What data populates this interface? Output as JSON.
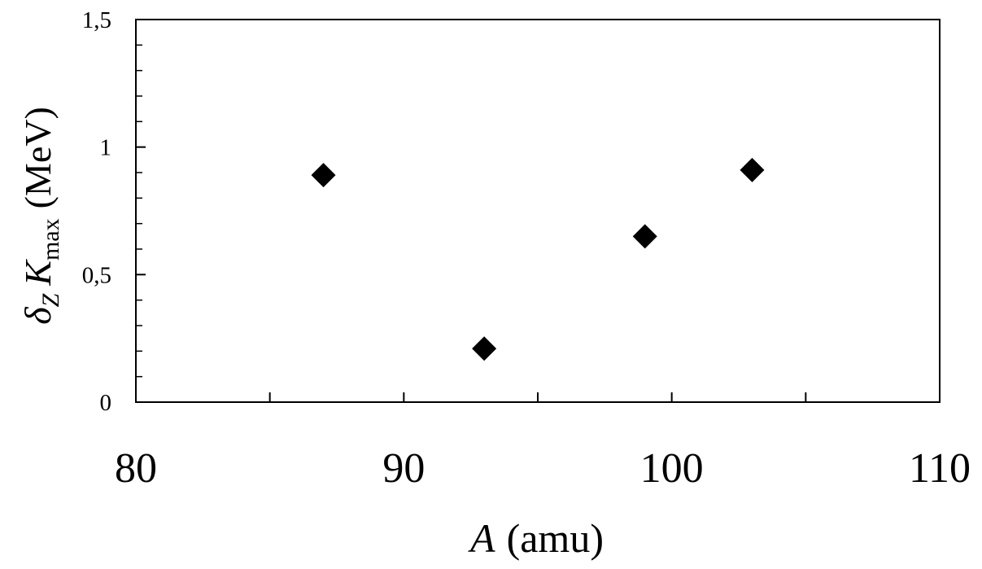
{
  "chart_data": {
    "type": "scatter",
    "x_label": [
      "A",
      "(amu)"
    ],
    "y_label": [
      "δ",
      "Z",
      "K",
      "max",
      "(MeV)"
    ],
    "series": [
      {
        "color": "#000000",
        "marker": "diamond",
        "x": [
          87,
          93,
          99,
          103
        ],
        "values": [
          0.89,
          0.21,
          0.65,
          0.91
        ]
      }
    ],
    "xlim": [
      80,
      110
    ],
    "xticks": [
      80,
      90,
      100,
      110
    ],
    "ylim": [
      0,
      1.5
    ],
    "yticks": [
      0,
      {
        "value": 0.5,
        "label": "0,5"
      },
      1,
      {
        "value": 1.5,
        "label": "1,5"
      }
    ],
    "grid": false
  }
}
